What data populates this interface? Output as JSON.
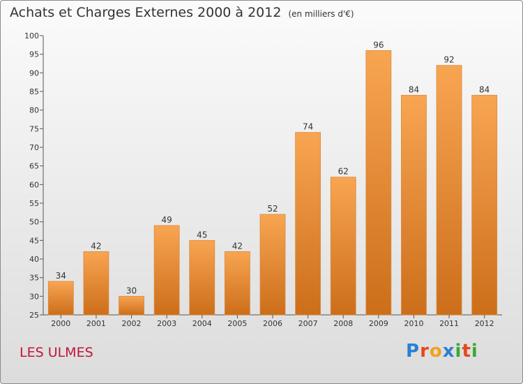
{
  "title": "Achats et Charges Externes 2000 à 2012",
  "subtitle": "(en milliers d'€)",
  "commune": "LES ULMES",
  "brand": {
    "letters": [
      "P",
      "r",
      "o",
      "x",
      "i",
      "t",
      "i"
    ],
    "colors": [
      "#2a7fd4",
      "#e8461b",
      "#f2a11f",
      "#2a7fd4",
      "#3aa935",
      "#e8461b",
      "#3aa935"
    ]
  },
  "colors": {
    "bar_top": "#f8a552",
    "bar_bottom": "#cc6e1a",
    "commune": "#c0143c"
  },
  "chart_data": {
    "type": "bar",
    "categories": [
      "2000",
      "2001",
      "2002",
      "2003",
      "2004",
      "2005",
      "2006",
      "2007",
      "2008",
      "2009",
      "2010",
      "2011",
      "2012"
    ],
    "values": [
      34,
      42,
      30,
      49,
      45,
      42,
      52,
      74,
      62,
      96,
      84,
      92,
      84
    ],
    "title": "Achats et Charges Externes 2000 à 2012",
    "ylim": [
      25,
      100
    ],
    "yticks": [
      25,
      30,
      35,
      40,
      45,
      50,
      55,
      60,
      65,
      70,
      75,
      80,
      85,
      90,
      95,
      100
    ],
    "grid": false
  }
}
